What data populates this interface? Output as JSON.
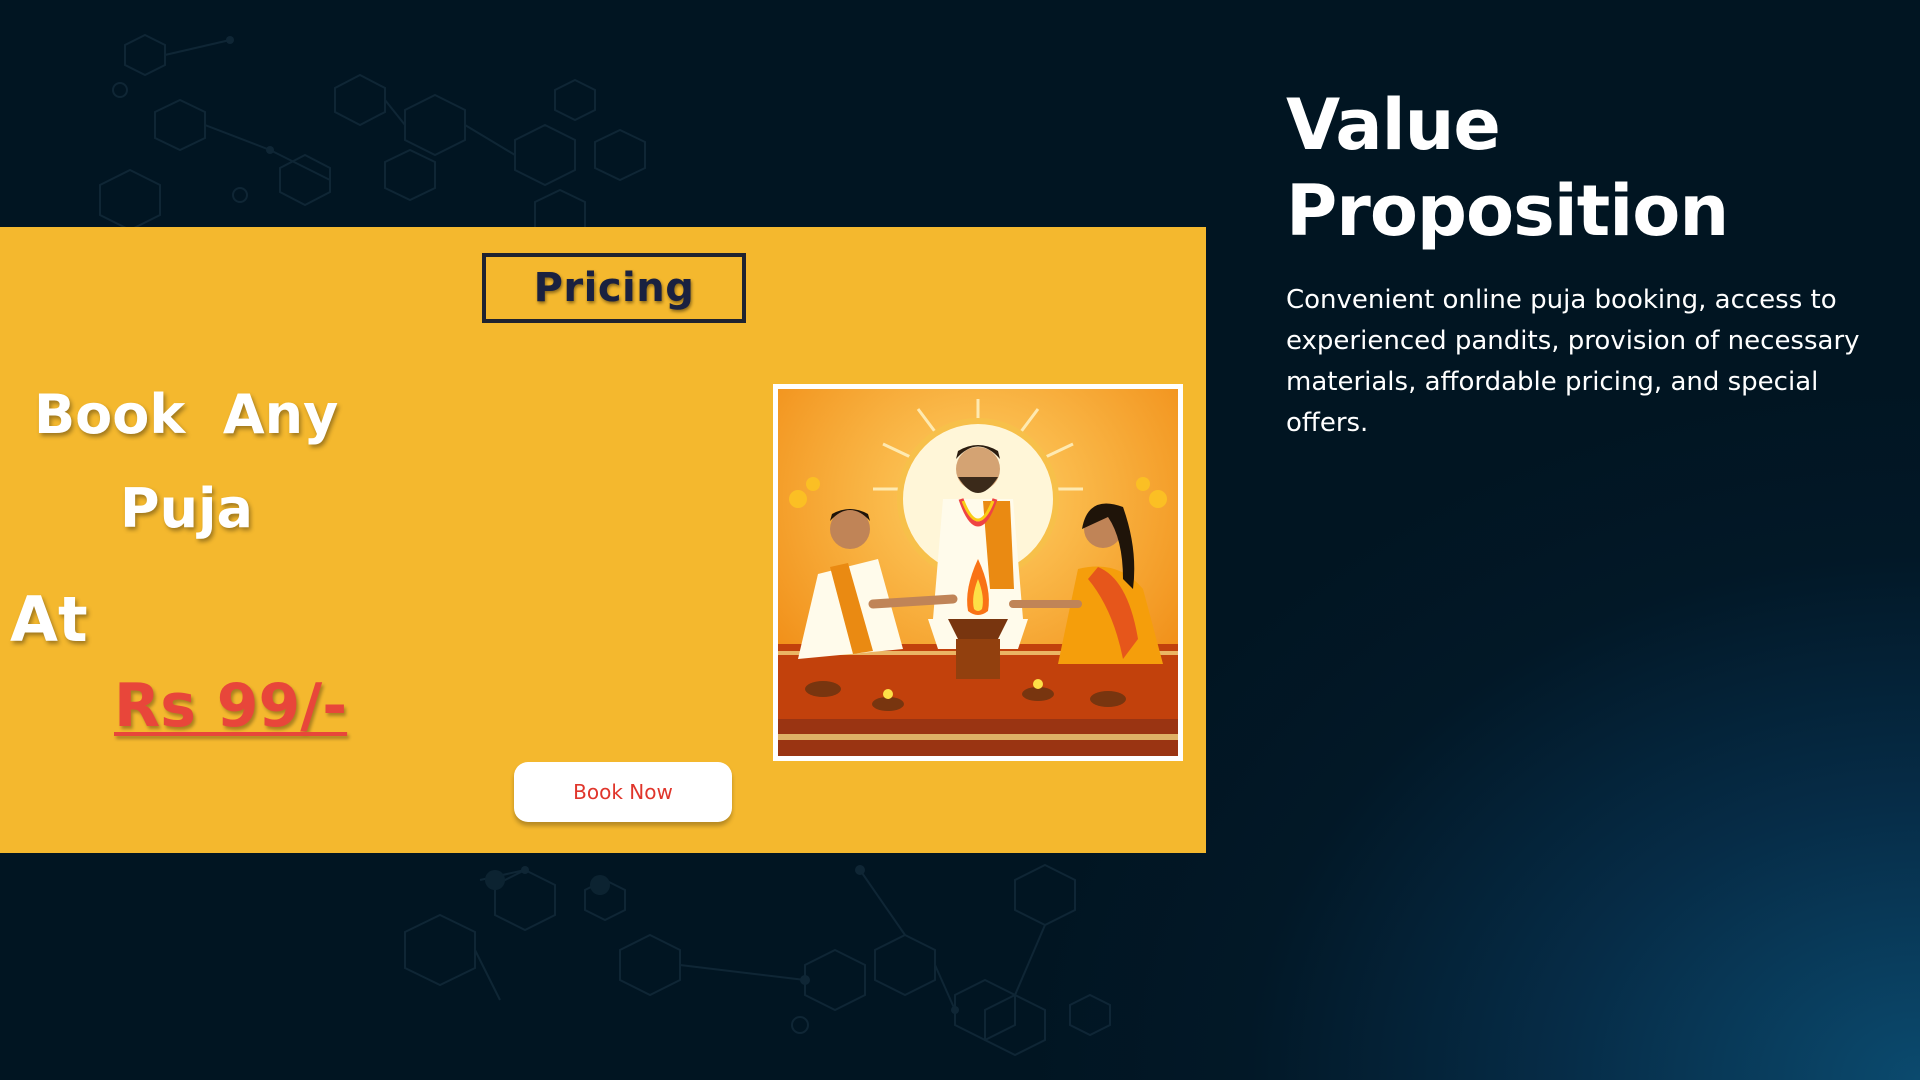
{
  "pricing_panel": {
    "heading": "Pricing",
    "headline_line1": "Book  Any",
    "headline_line2": "Puja",
    "headline_line3": "At",
    "price": "Rs 99/-",
    "cta_label": "Book Now",
    "accent_color": "#f4b82e",
    "price_color": "#e8463a"
  },
  "value_proposition": {
    "title": "Value Proposition",
    "body": "Convenient online puja booking, access to experienced pandits, provision of necessary materials, affordable pricing, and special offers."
  },
  "icons": {
    "illustration": "puja-ceremony-illustration",
    "background": "hexagon-network-pattern"
  }
}
